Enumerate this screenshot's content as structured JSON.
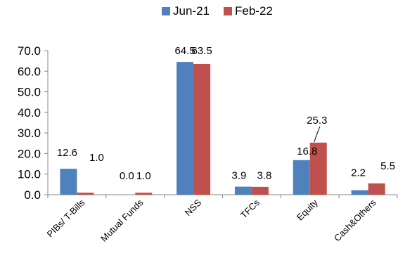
{
  "chart_data": {
    "type": "bar",
    "categories": [
      "PIBs/ T-Bills",
      "Mutual Funds",
      "NSS",
      "TFCs",
      "Equity",
      "Cash&Others"
    ],
    "series": [
      {
        "name": "Jun-21",
        "values": [
          12.6,
          0.0,
          64.5,
          3.9,
          16.8,
          2.2
        ],
        "labels": [
          "12.6",
          "0.0",
          "64.5",
          "3.9",
          "16.8",
          "2.2"
        ]
      },
      {
        "name": "Feb-22",
        "values": [
          1.0,
          1.0,
          63.5,
          3.8,
          25.3,
          5.5
        ],
        "labels": [
          "1.0",
          "1.0",
          "63.5",
          "3.8",
          "25.3",
          "5.5"
        ]
      }
    ],
    "title": "",
    "xlabel": "",
    "ylabel": "",
    "ylim": [
      0,
      70
    ],
    "yticks": [
      "0.0",
      "10.0",
      "20.0",
      "30.0",
      "40.0",
      "50.0",
      "60.0",
      "70.0"
    ],
    "grid": false,
    "legend_position": "top-center",
    "colors": {
      "series_0": "#4F81BD",
      "series_1": "#C0504D",
      "axis": "#888888",
      "text": "#000000"
    }
  }
}
